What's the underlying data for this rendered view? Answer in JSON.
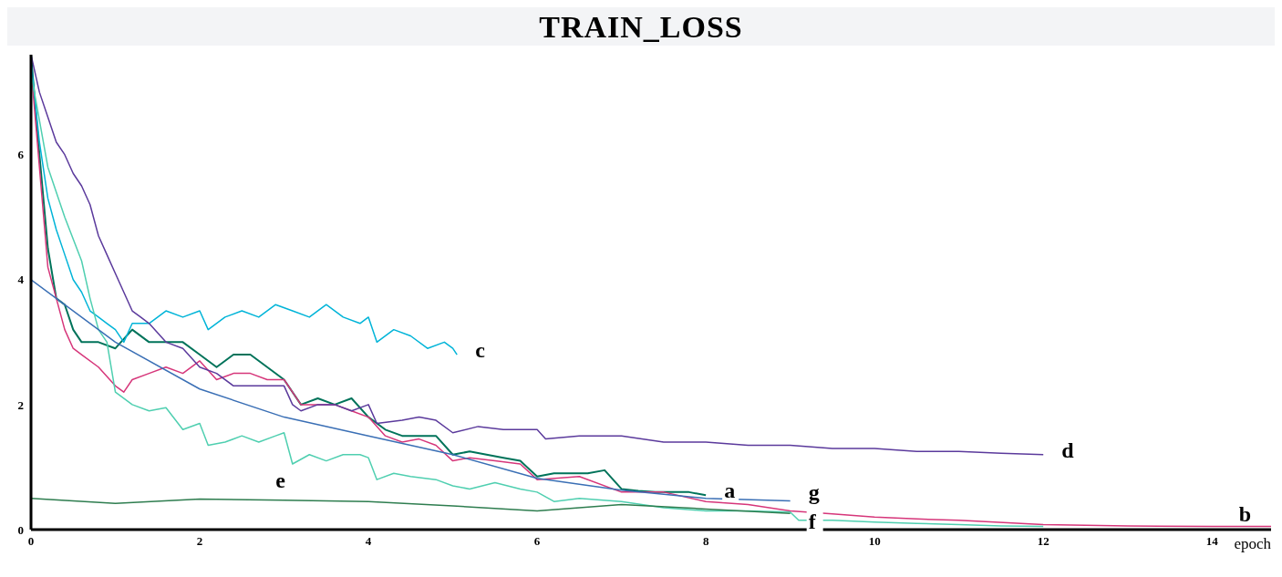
{
  "chart_data": {
    "type": "line",
    "title": "TRAIN_LOSS",
    "xlabel": "epoch",
    "xlim": [
      0,
      14.7
    ],
    "xticks": [
      0,
      2,
      4,
      6,
      8,
      10,
      12,
      14
    ],
    "ylim": [
      0,
      7.6
    ],
    "yticks": [
      0,
      2,
      4,
      6
    ],
    "grid": false,
    "marker": "none",
    "line_style": "solid",
    "series": [
      {
        "color": "#00735a",
        "x": [
          0,
          0.1,
          0.2,
          0.3,
          0.4,
          0.5,
          0.6,
          0.8,
          1.0,
          1.2,
          1.4,
          1.6,
          1.8,
          2.0,
          2.2,
          2.4,
          2.6,
          2.8,
          3.0,
          3.2,
          3.4,
          3.6,
          3.8,
          4.0,
          4.2,
          4.4,
          4.6,
          4.8,
          5.0,
          5.2,
          5.4,
          5.6,
          5.8,
          6.0,
          6.2,
          6.4,
          6.6,
          6.8,
          7.0,
          7.2,
          7.4,
          7.6,
          7.8,
          8.0
        ],
        "values": [
          7.6,
          6.0,
          4.5,
          3.7,
          3.6,
          3.2,
          3.0,
          3.0,
          2.9,
          3.2,
          3.0,
          3.0,
          3.0,
          2.8,
          2.6,
          2.8,
          2.8,
          2.6,
          2.4,
          2.0,
          2.1,
          2.0,
          2.1,
          1.8,
          1.6,
          1.5,
          1.5,
          1.5,
          1.2,
          1.25,
          1.2,
          1.15,
          1.1,
          0.85,
          0.9,
          0.9,
          0.9,
          0.95,
          0.65,
          0.62,
          0.6,
          0.6,
          0.6,
          0.55
        ]
      },
      {
        "color": "#d6367a",
        "x": [
          0,
          0.1,
          0.2,
          0.3,
          0.4,
          0.5,
          0.6,
          0.8,
          1.0,
          1.1,
          1.2,
          1.4,
          1.6,
          1.8,
          2.0,
          2.2,
          2.4,
          2.6,
          2.8,
          3.0,
          3.2,
          3.4,
          3.6,
          3.8,
          4.0,
          4.2,
          4.4,
          4.6,
          4.8,
          5.0,
          5.2,
          5.5,
          5.8,
          6.0,
          6.5,
          7.0,
          7.5,
          8.0,
          8.5,
          9.0,
          9.5,
          10,
          10.5,
          11,
          12,
          13,
          14,
          14.7
        ],
        "values": [
          7.4,
          5.8,
          4.2,
          3.7,
          3.2,
          2.9,
          2.8,
          2.6,
          2.3,
          2.2,
          2.4,
          2.5,
          2.6,
          2.5,
          2.7,
          2.4,
          2.5,
          2.5,
          2.4,
          2.4,
          2.0,
          2.0,
          2.0,
          1.9,
          1.8,
          1.5,
          1.4,
          1.45,
          1.35,
          1.1,
          1.15,
          1.1,
          1.05,
          0.8,
          0.85,
          0.6,
          0.6,
          0.45,
          0.4,
          0.3,
          0.25,
          0.2,
          0.17,
          0.15,
          0.08,
          0.06,
          0.05,
          0.05
        ]
      },
      {
        "color": "#00b4d8",
        "x": [
          0,
          0.1,
          0.2,
          0.3,
          0.4,
          0.5,
          0.6,
          0.7,
          0.8,
          0.9,
          1.0,
          1.1,
          1.2,
          1.4,
          1.6,
          1.8,
          2.0,
          2.1,
          2.3,
          2.5,
          2.7,
          2.9,
          3.1,
          3.3,
          3.5,
          3.7,
          3.9,
          4.0,
          4.1,
          4.3,
          4.5,
          4.7,
          4.9,
          5.0,
          5.05
        ],
        "values": [
          7.5,
          6.2,
          5.3,
          4.8,
          4.4,
          4.0,
          3.8,
          3.5,
          3.4,
          3.3,
          3.2,
          3.0,
          3.3,
          3.3,
          3.5,
          3.4,
          3.5,
          3.2,
          3.4,
          3.5,
          3.4,
          3.6,
          3.5,
          3.4,
          3.6,
          3.4,
          3.3,
          3.4,
          3.0,
          3.2,
          3.1,
          2.9,
          3.0,
          2.9,
          2.8
        ]
      },
      {
        "color": "#5b3a9c",
        "x": [
          0,
          0.1,
          0.2,
          0.3,
          0.4,
          0.5,
          0.6,
          0.7,
          0.8,
          0.9,
          1.0,
          1.1,
          1.2,
          1.3,
          1.4,
          1.6,
          1.8,
          2.0,
          2.2,
          2.4,
          2.6,
          2.8,
          3.0,
          3.1,
          3.2,
          3.4,
          3.6,
          3.8,
          4.0,
          4.1,
          4.4,
          4.6,
          4.8,
          5.0,
          5.3,
          5.6,
          6.0,
          6.1,
          6.5,
          7.0,
          7.5,
          8.0,
          8.5,
          9.0,
          9.5,
          10,
          10.5,
          11,
          11.5,
          12
        ],
        "values": [
          7.6,
          7.0,
          6.6,
          6.2,
          6.0,
          5.7,
          5.5,
          5.2,
          4.7,
          4.4,
          4.1,
          3.8,
          3.5,
          3.4,
          3.3,
          3.0,
          2.9,
          2.6,
          2.5,
          2.3,
          2.3,
          2.3,
          2.3,
          2.0,
          1.9,
          2.0,
          2.0,
          1.9,
          2.0,
          1.7,
          1.75,
          1.8,
          1.75,
          1.55,
          1.65,
          1.6,
          1.6,
          1.45,
          1.5,
          1.5,
          1.4,
          1.4,
          1.35,
          1.35,
          1.3,
          1.3,
          1.25,
          1.25,
          1.22,
          1.2
        ]
      },
      {
        "color": "#4fcfb0",
        "x": [
          0,
          0.2,
          0.4,
          0.6,
          0.7,
          0.8,
          0.9,
          1.0,
          1.2,
          1.4,
          1.6,
          1.8,
          2.0,
          2.1,
          2.3,
          2.5,
          2.7,
          2.9,
          3.0,
          3.1,
          3.3,
          3.5,
          3.7,
          3.9,
          4.0,
          4.1,
          4.3,
          4.5,
          4.8,
          5.0,
          5.2,
          5.5,
          5.8,
          6.0,
          6.2,
          6.5,
          7.0,
          7.5,
          8.0,
          8.5,
          9.0,
          9.1,
          9.5,
          10,
          10.5,
          11,
          11.5,
          12
        ],
        "values": [
          7.3,
          5.8,
          5.0,
          4.3,
          3.7,
          3.2,
          3.0,
          2.2,
          2.0,
          1.9,
          1.95,
          1.6,
          1.7,
          1.35,
          1.4,
          1.5,
          1.4,
          1.5,
          1.55,
          1.05,
          1.2,
          1.1,
          1.2,
          1.2,
          1.15,
          0.8,
          0.9,
          0.85,
          0.8,
          0.7,
          0.65,
          0.75,
          0.65,
          0.6,
          0.45,
          0.5,
          0.45,
          0.35,
          0.3,
          0.3,
          0.28,
          0.15,
          0.15,
          0.12,
          0.1,
          0.08,
          0.06,
          0.05
        ]
      },
      {
        "color": "#2e7d4f",
        "x": [
          0,
          1,
          2,
          3,
          4,
          5,
          6,
          7,
          8,
          9
        ],
        "values": [
          0.5,
          0.42,
          0.49,
          0.47,
          0.45,
          0.38,
          0.3,
          0.4,
          0.33,
          0.26
        ]
      },
      {
        "color": "#3a6fb5",
        "x": [
          0,
          1,
          2,
          3,
          4,
          5,
          6,
          7,
          8,
          9
        ],
        "values": [
          4.0,
          3.0,
          2.25,
          1.8,
          1.5,
          1.2,
          0.82,
          0.63,
          0.5,
          0.46
        ]
      }
    ],
    "annotations": [
      {
        "text": "a",
        "x": 8.0,
        "y": 0.55
      },
      {
        "text": "b",
        "x": 14.7,
        "y": 0.05
      },
      {
        "text": "c",
        "x": 5.05,
        "y": 2.8
      },
      {
        "text": "d",
        "x": 12,
        "y": 1.2
      },
      {
        "text": "e",
        "x": 3.1,
        "y": 1.05
      },
      {
        "text": "f",
        "x": 9,
        "y": 0.26
      },
      {
        "text": "g",
        "x": 9,
        "y": 0.46
      }
    ]
  }
}
